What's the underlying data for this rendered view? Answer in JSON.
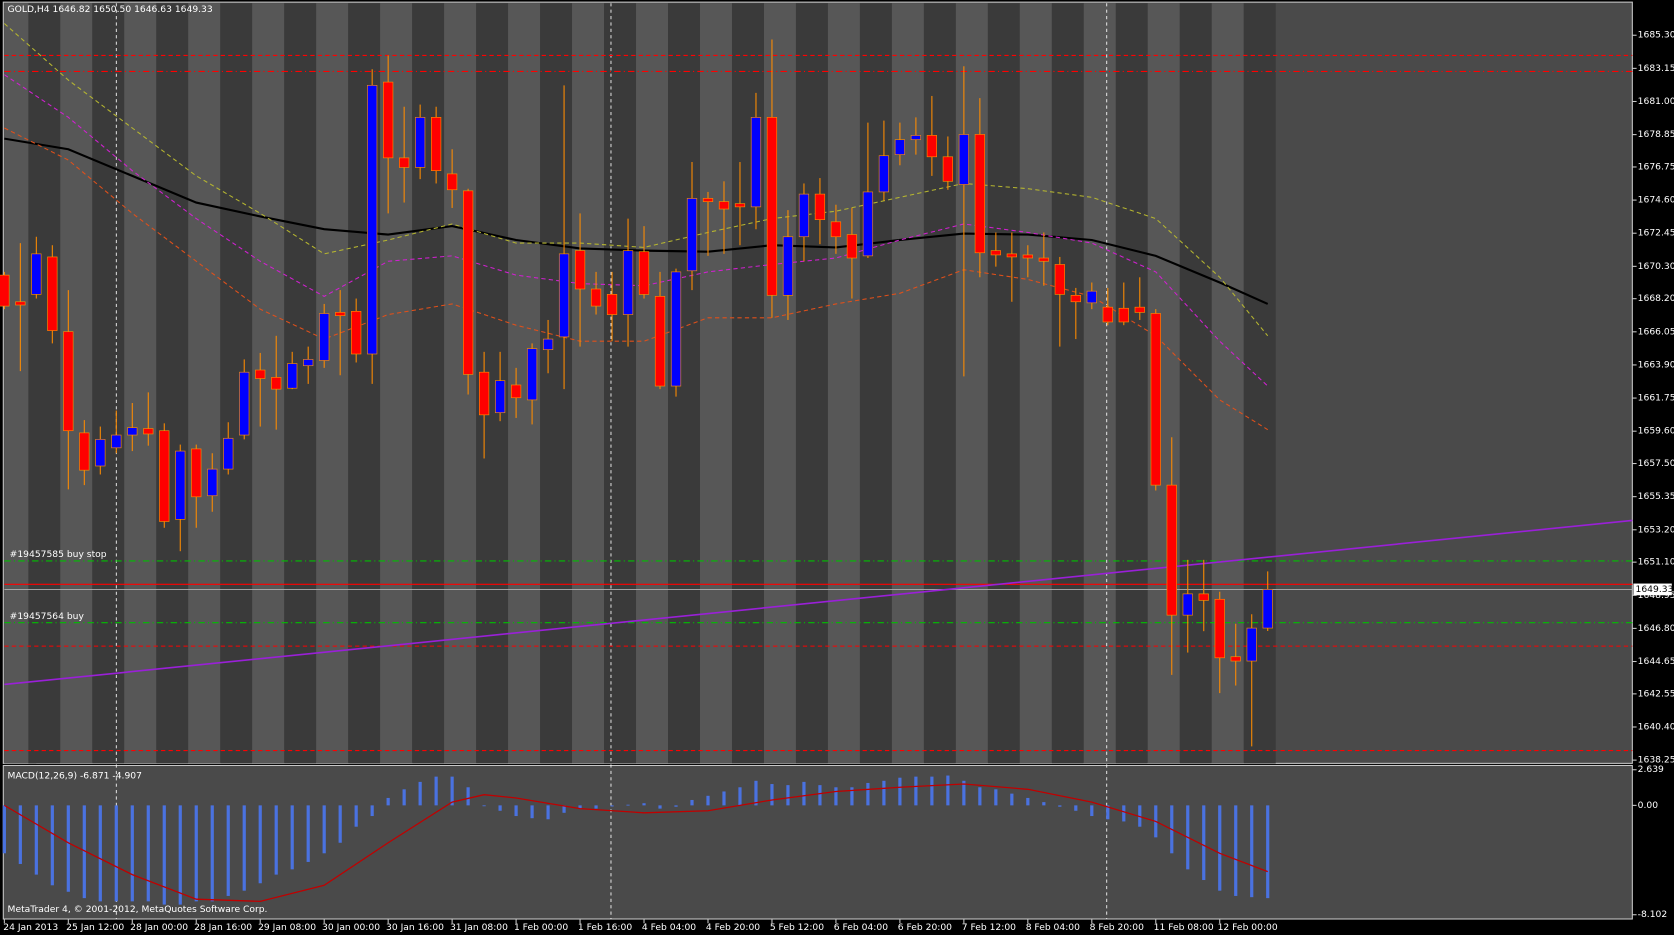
{
  "footer": "MetaTrader 4, © 2001-2012, MetaQuotes Software Corp.",
  "chart_data": [
    {
      "type": "candlestick",
      "title": "GOLD,H4  1646.82 1650.50 1646.63 1649.33",
      "categories": [
        "24 Jan 2013",
        null,
        null,
        null,
        "25 Jan 12:00",
        null,
        null,
        null,
        "28 Jan 00:00",
        null,
        null,
        null,
        "28 Jan 16:00",
        null,
        null,
        null,
        "29 Jan 08:00",
        null,
        null,
        null,
        "30 Jan 00:00",
        null,
        null,
        null,
        "30 Jan 16:00",
        null,
        null,
        null,
        "31 Jan 08:00",
        null,
        null,
        null,
        "1 Feb 00:00",
        null,
        null,
        null,
        "1 Feb 16:00",
        null,
        null,
        null,
        "4 Feb 04:00",
        null,
        null,
        null,
        "4 Feb 20:00",
        null,
        null,
        null,
        "5 Feb 12:00",
        null,
        null,
        null,
        "6 Feb 04:00",
        null,
        null,
        null,
        "6 Feb 20:00",
        null,
        null,
        null,
        "7 Feb 12:00",
        null,
        null,
        null,
        "8 Feb 04:00",
        null,
        null,
        null,
        "8 Feb 20:00",
        null,
        null,
        null,
        "11 Feb 08:00",
        null,
        null,
        null,
        "12 Feb 00:00",
        null,
        null,
        null
      ],
      "open": [
        1669.73,
        1668.0,
        1668.48,
        1670.91,
        1666.06,
        1659.49,
        1657.34,
        1658.52,
        1659.35,
        1659.77,
        1659.63,
        1653.88,
        1658.45,
        1655.41,
        1657.14,
        1659.35,
        1663.57,
        1663.09,
        1662.39,
        1663.85,
        1664.19,
        1667.31,
        1667.38,
        1664.61,
        1682.26,
        1677.34,
        1676.72,
        1679.97,
        1676.3,
        1675.2,
        1663.43,
        1660.8,
        1662.6,
        1661.63,
        1664.89,
        1665.72,
        1671.32,
        1668.83,
        1668.48,
        1667.17,
        1671.25,
        1668.35,
        1662.53,
        1670.01,
        1674.71,
        1674.5,
        1674.37,
        1674.16,
        1679.97,
        1668.42,
        1672.22,
        1674.99,
        1673.19,
        1672.36,
        1670.98,
        1675.13,
        1677.55,
        1678.52,
        1678.8,
        1677.41,
        1675.61,
        1678.86,
        1671.32,
        1671.11,
        1671.04,
        1670.84,
        1670.42,
        1668.42,
        1667.93,
        1667.65,
        1667.58,
        1667.65,
        1667.24,
        1656.1,
        1647.66,
        1649.04,
        1648.69,
        1644.96,
        1644.68,
        1646.82
      ],
      "high": [
        1669.94,
        1671.81,
        1672.22,
        1671.67,
        1668.76,
        1660.32,
        1659.9,
        1660.94,
        1661.43,
        1662.12,
        1660.11,
        1658.73,
        1658.73,
        1658.17,
        1660.18,
        1664.26,
        1664.68,
        1665.79,
        1664.75,
        1665.09,
        1667.86,
        1668.76,
        1668.21,
        1683.09,
        1683.99,
        1680.66,
        1680.8,
        1680.66,
        1677.9,
        1675.34,
        1664.75,
        1664.75,
        1663.71,
        1665.3,
        1666.82,
        1682.05,
        1673.74,
        1669.94,
        1669.94,
        1673.4,
        1672.91,
        1669.94,
        1670.15,
        1677.07,
        1675.13,
        1675.82,
        1677.07,
        1681.56,
        1685.02,
        1673.95,
        1675.68,
        1676.03,
        1674.3,
        1674.09,
        1679.63,
        1679.76,
        1679.63,
        1679.97,
        1681.36,
        1678.73,
        1683.29,
        1681.22,
        1672.5,
        1672.5,
        1671.67,
        1672.5,
        1670.91,
        1668.9,
        1669.25,
        1668.9,
        1669.25,
        1669.59,
        1667.52,
        1659.21,
        1651.25,
        1651.25,
        1649.18,
        1647.1,
        1647.72,
        1650.5
      ],
      "low": [
        1667.52,
        1663.5,
        1668.21,
        1665.3,
        1655.82,
        1656.1,
        1656.79,
        1658.17,
        1658.31,
        1658.66,
        1653.33,
        1651.81,
        1653.33,
        1654.37,
        1656.79,
        1659.07,
        1659.9,
        1659.7,
        1662.33,
        1662.67,
        1663.71,
        1663.23,
        1664.06,
        1662.67,
        1673.74,
        1674.44,
        1675.96,
        1675.68,
        1674.09,
        1661.98,
        1657.83,
        1660.25,
        1660.46,
        1660.04,
        1663.36,
        1662.33,
        1665.09,
        1667.17,
        1665.44,
        1665.09,
        1668.21,
        1662.33,
        1661.84,
        1668.76,
        1670.98,
        1671.11,
        1671.67,
        1672.71,
        1666.96,
        1666.82,
        1670.63,
        1671.74,
        1671.11,
        1668.21,
        1670.84,
        1674.57,
        1676.86,
        1677.55,
        1676.17,
        1675.27,
        1663.16,
        1669.59,
        1670.28,
        1668.0,
        1669.59,
        1669.04,
        1665.09,
        1665.58,
        1667.52,
        1666.48,
        1666.48,
        1666.82,
        1655.75,
        1643.78,
        1645.23,
        1646.62,
        1642.6,
        1643.09,
        1639.14,
        1646.63
      ],
      "close": [
        1667.72,
        1667.79,
        1671.11,
        1666.13,
        1659.63,
        1657.07,
        1659.07,
        1659.35,
        1659.83,
        1659.42,
        1653.74,
        1658.31,
        1655.34,
        1657.14,
        1659.14,
        1663.43,
        1663.02,
        1662.33,
        1663.99,
        1664.26,
        1667.24,
        1667.1,
        1664.61,
        1682.05,
        1677.34,
        1676.72,
        1679.97,
        1676.51,
        1675.27,
        1663.29,
        1660.66,
        1662.88,
        1661.77,
        1664.96,
        1665.58,
        1671.11,
        1668.83,
        1667.72,
        1667.17,
        1671.32,
        1668.48,
        1662.53,
        1669.94,
        1674.71,
        1674.5,
        1674.02,
        1674.16,
        1679.97,
        1668.42,
        1672.22,
        1674.99,
        1673.33,
        1672.22,
        1670.84,
        1675.13,
        1677.48,
        1678.52,
        1678.8,
        1677.41,
        1675.82,
        1678.86,
        1671.18,
        1671.04,
        1670.91,
        1670.84,
        1670.63,
        1668.48,
        1668.0,
        1668.69,
        1666.69,
        1666.69,
        1667.31,
        1656.1,
        1647.66,
        1649.04,
        1648.62,
        1644.89,
        1644.68,
        1646.82,
        1649.33
      ],
      "up_color": "#0000ff",
      "down_color": "#ff0000",
      "wick_color": "#ff8c00",
      "lines": [
        {
          "color": "#000000",
          "style": "solid",
          "x": [
            0,
            4,
            8,
            12,
            16,
            20,
            24,
            28,
            32,
            36,
            40,
            44,
            48,
            52,
            56,
            60,
            64,
            68,
            72,
            76,
            79
          ],
          "values": [
            1678.59,
            1677.9,
            1676.17,
            1674.44,
            1673.54,
            1672.71,
            1672.36,
            1672.91,
            1672.01,
            1671.46,
            1671.32,
            1671.25,
            1671.67,
            1671.53,
            1672.01,
            1672.43,
            1672.36,
            1672.01,
            1670.98,
            1669.25,
            1667.86
          ]
        },
        {
          "color": "#b5b530",
          "style": "dash",
          "x": [
            0,
            4,
            8,
            12,
            16,
            20,
            24,
            28,
            32,
            36,
            40,
            44,
            48,
            52,
            56,
            60,
            64,
            68,
            72,
            76,
            79
          ],
          "values": [
            1686.06,
            1682.39,
            1679.28,
            1676.17,
            1673.74,
            1671.11,
            1672.01,
            1673.05,
            1671.81,
            1671.81,
            1671.53,
            1672.5,
            1673.4,
            1673.88,
            1674.78,
            1675.68,
            1675.34,
            1674.78,
            1673.4,
            1669.59,
            1665.79
          ]
        },
        {
          "color": "#d020d0",
          "style": "dash",
          "x": [
            0,
            4,
            8,
            12,
            16,
            20,
            24,
            28,
            32,
            36,
            40,
            44,
            48,
            52,
            56,
            60,
            64,
            68,
            72,
            76,
            79
          ],
          "values": [
            1682.74,
            1679.97,
            1676.51,
            1673.4,
            1670.63,
            1668.35,
            1670.63,
            1670.98,
            1669.73,
            1669.18,
            1669.04,
            1669.94,
            1670.42,
            1670.84,
            1672.01,
            1673.05,
            1672.5,
            1671.81,
            1669.94,
            1665.44,
            1662.53
          ]
        },
        {
          "color": "#e0501a",
          "style": "dash",
          "x": [
            0,
            4,
            8,
            12,
            16,
            20,
            24,
            28,
            32,
            36,
            40,
            44,
            48,
            52,
            56,
            60,
            64,
            68,
            72,
            76,
            79
          ],
          "values": [
            1679.28,
            1677.2,
            1673.74,
            1670.63,
            1667.52,
            1665.58,
            1667.17,
            1667.86,
            1666.48,
            1665.44,
            1665.44,
            1666.96,
            1666.96,
            1667.86,
            1668.55,
            1670.08,
            1669.45,
            1668.35,
            1665.79,
            1661.63,
            1659.7
          ]
        }
      ],
      "levels": [
        {
          "price": 1683.99,
          "color": "#ff0000",
          "style": "dash"
        },
        {
          "price": 1682.95,
          "color": "#ff0000",
          "style": "dashdot"
        },
        {
          "price": 1649.66,
          "color": "#ff0000",
          "style": "solid"
        },
        {
          "price": 1645.65,
          "color": "#ff0000",
          "style": "dash"
        },
        {
          "price": 1638.87,
          "color": "#ff0000",
          "style": "dash"
        }
      ],
      "orders": [
        {
          "label": "#19457585 buy stop",
          "price": 1651.18,
          "color": "#00c000",
          "style": "dashdot"
        },
        {
          "label": "#19457564 buy",
          "price": 1647.17,
          "color": "#00c000",
          "style": "dashdot"
        }
      ],
      "trendline": {
        "prices": [
          1643.16,
          1653.81
        ],
        "color": "#9a20d8"
      },
      "bid": 1649.33,
      "bid_color": "#b0b0b0",
      "ylim": [
        1638.04,
        1687.38
      ],
      "yticks": [
        {
          "value": 1685.3,
          "label": "1685.30"
        },
        1683.15,
        {
          "value": 1681,
          "label": "1681.00"
        },
        1678.85,
        1676.75,
        {
          "value": 1674.6,
          "label": "1674.60"
        },
        1672.45,
        {
          "value": 1670.3,
          "label": "1670.30"
        },
        {
          "value": 1668.2,
          "label": "1668.20"
        },
        1666.05,
        {
          "value": 1663.9,
          "label": "1663.90"
        },
        1661.75,
        {
          "value": 1659.6,
          "label": "1659.60"
        },
        {
          "value": 1657.5,
          "label": "1657.50"
        },
        1655.35,
        {
          "value": 1653.2,
          "label": "1653.20"
        },
        {
          "value": 1651.1,
          "label": "1651.10"
        },
        1648.95,
        {
          "value": 1646.8,
          "label": "1646.80"
        },
        1644.65,
        1642.55,
        {
          "value": 1640.4,
          "label": "1640.40"
        },
        1638.25
      ]
    },
    {
      "type": "bar",
      "title": "MACD(12,26,9) -6.871 -4.907",
      "values": [
        -3.55,
        -4.34,
        -5.13,
        -5.92,
        -6.4,
        -6.87,
        -7.11,
        -7.11,
        -7.11,
        -7.11,
        -7.35,
        -7.35,
        -7.11,
        -7.11,
        -6.71,
        -6.32,
        -5.77,
        -5.13,
        -4.74,
        -4.19,
        -3.55,
        -2.77,
        -1.58,
        -0.79,
        0.55,
        1.19,
        1.74,
        2.13,
        2.13,
        1.34,
        -0.05,
        -0.4,
        -0.79,
        -0.95,
        -1.03,
        -0.55,
        -0.24,
        -0.24,
        -0.08,
        0.05,
        0.16,
        -0.24,
        -0.1,
        0.4,
        0.71,
        1.03,
        1.34,
        1.82,
        1.58,
        1.5,
        1.74,
        1.5,
        1.34,
        1.34,
        1.66,
        1.82,
        2.05,
        2.13,
        2.13,
        2.21,
        1.82,
        1.34,
        1.19,
        0.87,
        0.55,
        0.24,
        -0.1,
        -0.4,
        -0.79,
        -1.03,
        -1.19,
        -1.58,
        -2.37,
        -3.55,
        -4.74,
        -5.53,
        -6.32,
        -6.71,
        -6.8,
        -6.871
      ],
      "color": "#4a72e0",
      "signal": {
        "color": "#c00000",
        "x": [
          0,
          4,
          8,
          12,
          16,
          20,
          24,
          28,
          30,
          32,
          36,
          40,
          44,
          48,
          52,
          56,
          60,
          64,
          68,
          72,
          76,
          79
        ],
        "values": [
          0,
          -2.77,
          -5.13,
          -6.95,
          -7.11,
          -5.92,
          -2.77,
          0.24,
          0.79,
          0.55,
          -0.24,
          -0.55,
          -0.4,
          0.4,
          1.03,
          1.34,
          1.58,
          1.19,
          0.24,
          -1.19,
          -3.55,
          -4.907
        ]
      },
      "ylim": [
        -8.102,
        2.639
      ],
      "yticks": [
        2.639,
        {
          "value": 0,
          "label": "0.00"
        },
        -8.102
      ]
    }
  ]
}
